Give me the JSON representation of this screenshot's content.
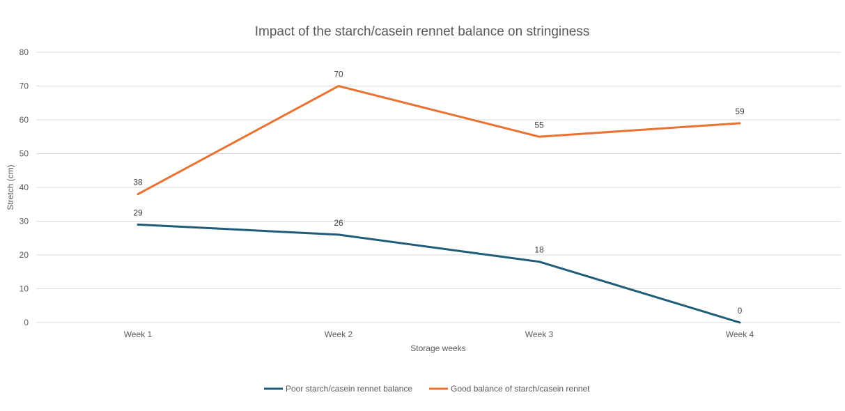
{
  "chart_data": {
    "type": "line",
    "title": "Impact of the starch/casein rennet balance on stringiness",
    "xlabel": "Storage weeks",
    "ylabel": "Stretch (cm)",
    "categories": [
      "Week 1",
      "Week 2",
      "Week 3",
      "Week 4"
    ],
    "ylim": [
      0,
      80
    ],
    "yticks": [
      0,
      10,
      20,
      30,
      40,
      50,
      60,
      70,
      80
    ],
    "grid": true,
    "legend_position": "bottom",
    "series": [
      {
        "name": "Poor starch/casein rennet balance",
        "values": [
          29,
          26,
          18,
          0
        ],
        "color": "#1f5c7a"
      },
      {
        "name": "Good balance of starch/casein rennet",
        "values": [
          38,
          70,
          55,
          59
        ],
        "color": "#e97132"
      }
    ]
  }
}
